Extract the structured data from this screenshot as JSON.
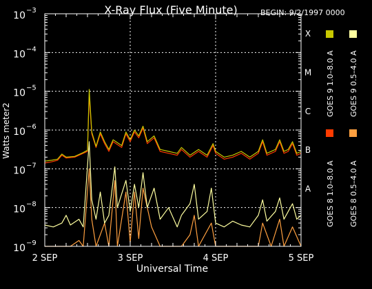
{
  "chart_data": {
    "type": "line",
    "title": "X-Ray Flux (Five Minute)",
    "begin": "BEGIN: 9/2/1997 0000",
    "xlabel": "Universal Time",
    "ylabel": "Watts meter2",
    "x_unit": "days from 2 SEP 1997 0000 UT",
    "xlim": [
      0,
      3
    ],
    "ylim_log10": [
      -9,
      -3
    ],
    "y_scale": "log",
    "x_ticks": [
      {
        "value": 0,
        "label": "2 SEP"
      },
      {
        "value": 1,
        "label": "3 SEP"
      },
      {
        "value": 2,
        "label": "4 SEP"
      },
      {
        "value": 3,
        "label": "5 SEP"
      }
    ],
    "y_ticks": [
      {
        "exp": -9,
        "base": "10",
        "sup": "−9"
      },
      {
        "exp": -8,
        "base": "10",
        "sup": "−8"
      },
      {
        "exp": -7,
        "base": "10",
        "sup": "−7"
      },
      {
        "exp": -6,
        "base": "10",
        "sup": "−6"
      },
      {
        "exp": -5,
        "base": "10",
        "sup": "−5"
      },
      {
        "exp": -4,
        "base": "10",
        "sup": "−4"
      },
      {
        "exp": -3,
        "base": "10",
        "sup": "−3"
      }
    ],
    "flare_classes": [
      {
        "label": "A",
        "exp": -8
      },
      {
        "label": "B",
        "exp": -7
      },
      {
        "label": "C",
        "exp": -6
      },
      {
        "label": "M",
        "exp": -5
      },
      {
        "label": "X",
        "exp": -4
      }
    ],
    "grid": {
      "horizontal": true,
      "vertical": true,
      "style": "dotted"
    },
    "legend_position": "right",
    "series": [
      {
        "name": "GOES 8 1.0–8.0 A",
        "color": "#ff3b00",
        "points": [
          [
            0,
            -6.85
          ],
          [
            0.08,
            -6.82
          ],
          [
            0.15,
            -6.78
          ],
          [
            0.2,
            -6.65
          ],
          [
            0.25,
            -6.72
          ],
          [
            0.35,
            -6.7
          ],
          [
            0.45,
            -6.6
          ],
          [
            0.5,
            -6.55
          ],
          [
            0.52,
            -5.1
          ],
          [
            0.55,
            -6.1
          ],
          [
            0.6,
            -6.45
          ],
          [
            0.65,
            -6.1
          ],
          [
            0.7,
            -6.35
          ],
          [
            0.75,
            -6.55
          ],
          [
            0.8,
            -6.3
          ],
          [
            0.9,
            -6.45
          ],
          [
            0.95,
            -6.1
          ],
          [
            1.0,
            -6.3
          ],
          [
            1.05,
            -6.05
          ],
          [
            1.1,
            -6.2
          ],
          [
            1.15,
            -5.95
          ],
          [
            1.2,
            -6.35
          ],
          [
            1.28,
            -6.2
          ],
          [
            1.35,
            -6.55
          ],
          [
            1.45,
            -6.6
          ],
          [
            1.55,
            -6.65
          ],
          [
            1.6,
            -6.5
          ],
          [
            1.7,
            -6.7
          ],
          [
            1.8,
            -6.55
          ],
          [
            1.9,
            -6.7
          ],
          [
            1.97,
            -6.4
          ],
          [
            2.0,
            -6.6
          ],
          [
            2.1,
            -6.75
          ],
          [
            2.2,
            -6.7
          ],
          [
            2.3,
            -6.6
          ],
          [
            2.4,
            -6.75
          ],
          [
            2.5,
            -6.6
          ],
          [
            2.55,
            -6.3
          ],
          [
            2.6,
            -6.65
          ],
          [
            2.7,
            -6.55
          ],
          [
            2.75,
            -6.3
          ],
          [
            2.8,
            -6.6
          ],
          [
            2.85,
            -6.55
          ],
          [
            2.9,
            -6.35
          ],
          [
            2.95,
            -6.65
          ],
          [
            3.0,
            -6.6
          ]
        ]
      },
      {
        "name": "GOES 8 0.5–4.0 A",
        "color": "#ffa040",
        "points": [
          [
            0,
            -9
          ],
          [
            0.3,
            -9
          ],
          [
            0.4,
            -8.85
          ],
          [
            0.45,
            -9
          ],
          [
            0.52,
            -7.0
          ],
          [
            0.55,
            -8.3
          ],
          [
            0.6,
            -9
          ],
          [
            0.7,
            -8.4
          ],
          [
            0.75,
            -9
          ],
          [
            0.82,
            -7.3
          ],
          [
            0.85,
            -9
          ],
          [
            0.95,
            -7.6
          ],
          [
            1.0,
            -8.9
          ],
          [
            1.05,
            -7.6
          ],
          [
            1.1,
            -8.8
          ],
          [
            1.15,
            -7.5
          ],
          [
            1.25,
            -8.5
          ],
          [
            1.35,
            -9
          ],
          [
            1.6,
            -9
          ],
          [
            1.7,
            -8.7
          ],
          [
            1.75,
            -8.2
          ],
          [
            1.8,
            -9
          ],
          [
            1.95,
            -8.4
          ],
          [
            2.0,
            -9
          ],
          [
            2.5,
            -9
          ],
          [
            2.55,
            -8.4
          ],
          [
            2.65,
            -9
          ],
          [
            2.75,
            -8.3
          ],
          [
            2.8,
            -9
          ],
          [
            2.9,
            -8.5
          ],
          [
            3.0,
            -9
          ]
        ]
      },
      {
        "name": "GOES 9 1.0–8.0 A",
        "color": "#c8c800",
        "points": [
          [
            0,
            -6.8
          ],
          [
            0.08,
            -6.78
          ],
          [
            0.15,
            -6.75
          ],
          [
            0.2,
            -6.62
          ],
          [
            0.25,
            -6.7
          ],
          [
            0.35,
            -6.68
          ],
          [
            0.45,
            -6.58
          ],
          [
            0.5,
            -6.52
          ],
          [
            0.52,
            -4.95
          ],
          [
            0.55,
            -6.05
          ],
          [
            0.6,
            -6.42
          ],
          [
            0.65,
            -6.05
          ],
          [
            0.7,
            -6.3
          ],
          [
            0.75,
            -6.5
          ],
          [
            0.8,
            -6.25
          ],
          [
            0.9,
            -6.4
          ],
          [
            0.95,
            -6.05
          ],
          [
            1.0,
            -6.25
          ],
          [
            1.05,
            -6.0
          ],
          [
            1.1,
            -6.15
          ],
          [
            1.15,
            -5.9
          ],
          [
            1.2,
            -6.3
          ],
          [
            1.28,
            -6.15
          ],
          [
            1.35,
            -6.5
          ],
          [
            1.45,
            -6.55
          ],
          [
            1.55,
            -6.6
          ],
          [
            1.6,
            -6.45
          ],
          [
            1.7,
            -6.65
          ],
          [
            1.8,
            -6.5
          ],
          [
            1.9,
            -6.65
          ],
          [
            1.97,
            -6.35
          ],
          [
            2.0,
            -6.55
          ],
          [
            2.1,
            -6.7
          ],
          [
            2.2,
            -6.65
          ],
          [
            2.3,
            -6.55
          ],
          [
            2.4,
            -6.7
          ],
          [
            2.5,
            -6.55
          ],
          [
            2.55,
            -6.25
          ],
          [
            2.6,
            -6.6
          ],
          [
            2.7,
            -6.5
          ],
          [
            2.75,
            -6.25
          ],
          [
            2.8,
            -6.55
          ],
          [
            2.85,
            -6.5
          ],
          [
            2.9,
            -6.3
          ],
          [
            2.95,
            -6.6
          ],
          [
            3.0,
            -6.55
          ]
        ]
      },
      {
        "name": "GOES 9 0.5–4.0 A",
        "color": "#ffffa0",
        "points": [
          [
            0,
            -8.45
          ],
          [
            0.1,
            -8.5
          ],
          [
            0.2,
            -8.4
          ],
          [
            0.25,
            -8.2
          ],
          [
            0.3,
            -8.45
          ],
          [
            0.4,
            -8.3
          ],
          [
            0.45,
            -8.5
          ],
          [
            0.52,
            -6.3
          ],
          [
            0.55,
            -7.8
          ],
          [
            0.6,
            -8.3
          ],
          [
            0.65,
            -7.6
          ],
          [
            0.7,
            -8.4
          ],
          [
            0.75,
            -8.2
          ],
          [
            0.82,
            -6.95
          ],
          [
            0.85,
            -8.0
          ],
          [
            0.95,
            -7.3
          ],
          [
            1.0,
            -8.1
          ],
          [
            1.05,
            -7.4
          ],
          [
            1.1,
            -8.0
          ],
          [
            1.15,
            -7.1
          ],
          [
            1.2,
            -8.0
          ],
          [
            1.28,
            -7.5
          ],
          [
            1.35,
            -8.3
          ],
          [
            1.45,
            -8.0
          ],
          [
            1.55,
            -8.5
          ],
          [
            1.6,
            -8.2
          ],
          [
            1.7,
            -7.9
          ],
          [
            1.75,
            -7.4
          ],
          [
            1.8,
            -8.3
          ],
          [
            1.9,
            -8.1
          ],
          [
            1.95,
            -7.5
          ],
          [
            2.0,
            -8.4
          ],
          [
            2.1,
            -8.5
          ],
          [
            2.2,
            -8.35
          ],
          [
            2.3,
            -8.45
          ],
          [
            2.4,
            -8.5
          ],
          [
            2.5,
            -8.2
          ],
          [
            2.55,
            -7.8
          ],
          [
            2.6,
            -8.35
          ],
          [
            2.7,
            -8.1
          ],
          [
            2.75,
            -7.75
          ],
          [
            2.8,
            -8.3
          ],
          [
            2.85,
            -8.1
          ],
          [
            2.9,
            -7.9
          ],
          [
            2.95,
            -8.3
          ],
          [
            3.0,
            -8.2
          ]
        ]
      }
    ]
  }
}
